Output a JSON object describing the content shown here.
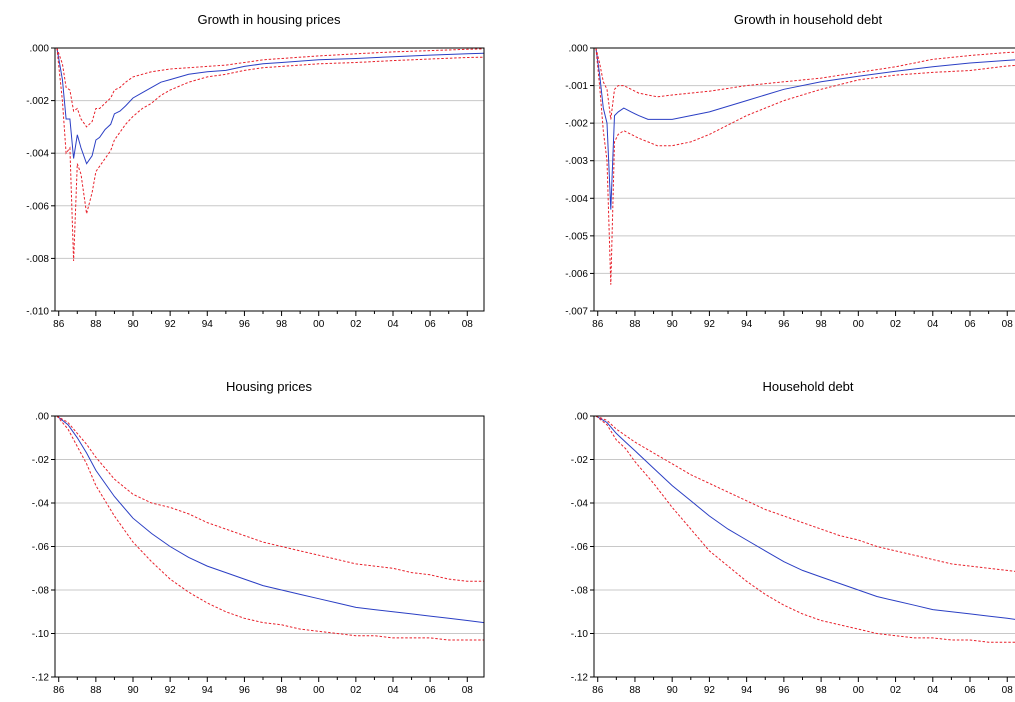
{
  "chart_data": [
    {
      "type": "line",
      "title": "Growth in housing prices",
      "xlabel": "",
      "ylabel": "",
      "x_tick_labels": [
        "86",
        "88",
        "90",
        "92",
        "94",
        "96",
        "98",
        "00",
        "02",
        "04",
        "06",
        "08"
      ],
      "y_tick_labels": [
        ".000",
        "-.002",
        "-.004",
        "-.006",
        "-.008",
        "-.010"
      ],
      "ylim": [
        -0.01,
        0.0
      ],
      "xlim": [
        1985.8,
        2008.9
      ],
      "grid": true,
      "colors": {
        "central": "#2b3fc4",
        "band": "#e8212b"
      },
      "series": [
        {
          "style": "solid",
          "x": [
            1985.9,
            1986.2,
            1986.4,
            1986.6,
            1986.8,
            1987.0,
            1987.2,
            1987.5,
            1987.8,
            1988.0,
            1988.2,
            1988.5,
            1988.8,
            1989.0,
            1989.3,
            1989.6,
            1990.0,
            1990.5,
            1991.0,
            1991.5,
            1992.0,
            1993.0,
            1994.0,
            1995.0,
            1996.0,
            1997.0,
            1998.0,
            2000.0,
            2002.0,
            2004.0,
            2006.0,
            2008.0,
            2008.9
          ],
          "y": [
            0,
            -0.0012,
            -0.0027,
            -0.0027,
            -0.0042,
            -0.0033,
            -0.0038,
            -0.0044,
            -0.0041,
            -0.0035,
            -0.0034,
            -0.0031,
            -0.0029,
            -0.0025,
            -0.0024,
            -0.0022,
            -0.0019,
            -0.0017,
            -0.0015,
            -0.0013,
            -0.0012,
            -0.001,
            -0.0009,
            -0.00085,
            -0.0007,
            -0.0006,
            -0.00055,
            -0.00045,
            -0.0004,
            -0.00033,
            -0.00027,
            -0.00022,
            -0.0002
          ]
        },
        {
          "style": "dashed",
          "x": [
            1985.9,
            1986.2,
            1986.4,
            1986.6,
            1986.8,
            1987.0,
            1987.2,
            1987.5,
            1987.8,
            1988.0,
            1988.2,
            1988.5,
            1988.8,
            1989.0,
            1989.3,
            1989.6,
            1990.0,
            1990.5,
            1991.0,
            1991.5,
            1992.0,
            1993.0,
            1994.0,
            1995.0,
            1996.0,
            1997.0,
            1998.0,
            2000.0,
            2002.0,
            2004.0,
            2006.0,
            2008.0,
            2008.9
          ],
          "y": [
            0,
            -0.0006,
            -0.0015,
            -0.0016,
            -0.0024,
            -0.0023,
            -0.0027,
            -0.003,
            -0.0028,
            -0.0023,
            -0.0023,
            -0.0021,
            -0.0019,
            -0.0016,
            -0.0015,
            -0.0013,
            -0.0011,
            -0.001,
            -0.0009,
            -0.00085,
            -0.0008,
            -0.00075,
            -0.0007,
            -0.00065,
            -0.00055,
            -0.00045,
            -0.0004,
            -0.0003,
            -0.00022,
            -0.00015,
            -0.0001,
            -5e-05,
            -3e-05
          ]
        },
        {
          "style": "dashed",
          "x": [
            1985.9,
            1986.2,
            1986.4,
            1986.6,
            1986.8,
            1987.0,
            1987.2,
            1987.5,
            1987.8,
            1988.0,
            1988.2,
            1988.5,
            1988.8,
            1989.0,
            1989.3,
            1989.6,
            1990.0,
            1990.5,
            1991.0,
            1991.5,
            1992.0,
            1993.0,
            1994.0,
            1995.0,
            1996.0,
            1997.0,
            1998.0,
            2000.0,
            2002.0,
            2004.0,
            2006.0,
            2008.0,
            2008.9
          ],
          "y": [
            0,
            -0.002,
            -0.004,
            -0.0038,
            -0.0081,
            -0.0044,
            -0.0048,
            -0.0063,
            -0.0055,
            -0.0047,
            -0.0045,
            -0.0042,
            -0.0039,
            -0.0035,
            -0.0032,
            -0.0029,
            -0.0026,
            -0.0023,
            -0.0021,
            -0.0018,
            -0.0016,
            -0.0013,
            -0.0011,
            -0.001,
            -0.00085,
            -0.00075,
            -0.0007,
            -0.0006,
            -0.00055,
            -0.00048,
            -0.00042,
            -0.00036,
            -0.00035
          ]
        }
      ]
    },
    {
      "type": "line",
      "title": "Growth in household debt",
      "xlabel": "",
      "ylabel": "",
      "x_tick_labels": [
        "86",
        "88",
        "90",
        "92",
        "94",
        "96",
        "98",
        "00",
        "02",
        "04",
        "06",
        "08"
      ],
      "y_tick_labels": [
        ".000",
        "-.001",
        "-.002",
        "-.003",
        "-.004",
        "-.005",
        "-.006",
        "-.007"
      ],
      "ylim": [
        -0.007,
        0.0
      ],
      "xlim": [
        1985.8,
        2008.9
      ],
      "grid": true,
      "colors": {
        "central": "#2b3fc4",
        "band": "#e8212b"
      },
      "series": [
        {
          "style": "solid",
          "x": [
            1985.9,
            1986.1,
            1986.3,
            1986.5,
            1986.7,
            1986.9,
            1987.1,
            1987.4,
            1987.8,
            1988.2,
            1988.7,
            1989.2,
            1990.0,
            1991.0,
            1992.0,
            1994.0,
            1996.0,
            1998.0,
            2000.0,
            2002.0,
            2004.0,
            2006.0,
            2008.0,
            2008.9
          ],
          "y": [
            0,
            -0.0007,
            -0.0016,
            -0.002,
            -0.0043,
            -0.0018,
            -0.0017,
            -0.0016,
            -0.0017,
            -0.0018,
            -0.0019,
            -0.0019,
            -0.0019,
            -0.0018,
            -0.0017,
            -0.0014,
            -0.0011,
            -0.0009,
            -0.00075,
            -0.00062,
            -0.0005,
            -0.0004,
            -0.00033,
            -0.0003
          ]
        },
        {
          "style": "dashed",
          "x": [
            1985.9,
            1986.1,
            1986.3,
            1986.5,
            1986.7,
            1986.9,
            1987.1,
            1987.4,
            1987.8,
            1988.2,
            1988.7,
            1989.2,
            1990.0,
            1991.0,
            1992.0,
            1994.0,
            1996.0,
            1998.0,
            2000.0,
            2002.0,
            2004.0,
            2006.0,
            2008.0,
            2008.9
          ],
          "y": [
            0,
            -0.0004,
            -0.0009,
            -0.0011,
            -0.0019,
            -0.0011,
            -0.001,
            -0.001,
            -0.0011,
            -0.0012,
            -0.00125,
            -0.0013,
            -0.00125,
            -0.0012,
            -0.00115,
            -0.001,
            -0.0009,
            -0.0008,
            -0.00065,
            -0.0005,
            -0.0003,
            -0.0002,
            -0.00012,
            -0.0001
          ]
        },
        {
          "style": "dashed",
          "x": [
            1985.9,
            1986.1,
            1986.3,
            1986.5,
            1986.7,
            1986.9,
            1987.1,
            1987.4,
            1987.8,
            1988.2,
            1988.7,
            1989.2,
            1990.0,
            1991.0,
            1992.0,
            1994.0,
            1996.0,
            1998.0,
            2000.0,
            2002.0,
            2004.0,
            2006.0,
            2008.0,
            2008.9
          ],
          "y": [
            0,
            -0.001,
            -0.0022,
            -0.003,
            -0.0063,
            -0.0025,
            -0.0023,
            -0.0022,
            -0.0023,
            -0.0024,
            -0.0025,
            -0.0026,
            -0.0026,
            -0.0025,
            -0.0023,
            -0.0018,
            -0.0014,
            -0.0011,
            -0.00085,
            -0.00072,
            -0.00065,
            -0.0006,
            -0.00048,
            -0.00045
          ]
        }
      ]
    },
    {
      "type": "line",
      "title": "Housing prices",
      "xlabel": "",
      "ylabel": "",
      "x_tick_labels": [
        "86",
        "88",
        "90",
        "92",
        "94",
        "96",
        "98",
        "00",
        "02",
        "04",
        "06",
        "08"
      ],
      "y_tick_labels": [
        ".00",
        "-.02",
        "-.04",
        "-.06",
        "-.08",
        "-.10",
        "-.12"
      ],
      "ylim": [
        -0.12,
        0.0
      ],
      "xlim": [
        1985.8,
        2008.9
      ],
      "grid": true,
      "colors": {
        "central": "#2b3fc4",
        "band": "#e8212b"
      },
      "series": [
        {
          "style": "solid",
          "x": [
            1985.9,
            1986.5,
            1987.0,
            1987.5,
            1988.0,
            1989.0,
            1990.0,
            1991.0,
            1992.0,
            1993.0,
            1994.0,
            1995.0,
            1996.0,
            1997.0,
            1998.0,
            1999.0,
            2000.0,
            2001.0,
            2002.0,
            2003.0,
            2004.0,
            2005.0,
            2006.0,
            2007.0,
            2008.0,
            2008.9
          ],
          "y": [
            0,
            -0.004,
            -0.01,
            -0.017,
            -0.025,
            -0.037,
            -0.047,
            -0.054,
            -0.06,
            -0.065,
            -0.069,
            -0.072,
            -0.075,
            -0.078,
            -0.08,
            -0.082,
            -0.084,
            -0.086,
            -0.088,
            -0.089,
            -0.09,
            -0.091,
            -0.092,
            -0.093,
            -0.094,
            -0.095
          ]
        },
        {
          "style": "dashed",
          "x": [
            1985.9,
            1986.5,
            1987.0,
            1987.5,
            1988.0,
            1989.0,
            1990.0,
            1991.0,
            1992.0,
            1993.0,
            1994.0,
            1995.0,
            1996.0,
            1997.0,
            1998.0,
            1999.0,
            2000.0,
            2001.0,
            2002.0,
            2003.0,
            2004.0,
            2005.0,
            2006.0,
            2007.0,
            2008.0,
            2008.9
          ],
          "y": [
            0,
            -0.003,
            -0.008,
            -0.013,
            -0.019,
            -0.029,
            -0.036,
            -0.04,
            -0.042,
            -0.045,
            -0.049,
            -0.052,
            -0.055,
            -0.058,
            -0.06,
            -0.062,
            -0.064,
            -0.066,
            -0.068,
            -0.069,
            -0.07,
            -0.072,
            -0.073,
            -0.075,
            -0.076,
            -0.076
          ]
        },
        {
          "style": "dashed",
          "x": [
            1985.9,
            1986.5,
            1987.0,
            1987.5,
            1988.0,
            1989.0,
            1990.0,
            1991.0,
            1992.0,
            1993.0,
            1994.0,
            1995.0,
            1996.0,
            1997.0,
            1998.0,
            1999.0,
            2000.0,
            2001.0,
            2002.0,
            2003.0,
            2004.0,
            2005.0,
            2006.0,
            2007.0,
            2008.0,
            2008.9
          ],
          "y": [
            0,
            -0.006,
            -0.014,
            -0.022,
            -0.032,
            -0.046,
            -0.058,
            -0.067,
            -0.075,
            -0.081,
            -0.086,
            -0.09,
            -0.093,
            -0.095,
            -0.096,
            -0.098,
            -0.099,
            -0.1,
            -0.101,
            -0.101,
            -0.102,
            -0.102,
            -0.102,
            -0.103,
            -0.103,
            -0.103
          ]
        }
      ]
    },
    {
      "type": "line",
      "title": "Household debt",
      "xlabel": "",
      "ylabel": "",
      "x_tick_labels": [
        "86",
        "88",
        "90",
        "92",
        "94",
        "96",
        "98",
        "00",
        "02",
        "04",
        "06",
        "08"
      ],
      "y_tick_labels": [
        ".00",
        "-.02",
        "-.04",
        "-.06",
        "-.08",
        "-.10",
        "-.12"
      ],
      "ylim": [
        -0.12,
        0.0
      ],
      "xlim": [
        1985.8,
        2008.9
      ],
      "grid": true,
      "colors": {
        "central": "#2b3fc4",
        "band": "#e8212b"
      },
      "series": [
        {
          "style": "solid",
          "x": [
            1985.9,
            1986.5,
            1987.0,
            1987.5,
            1988.0,
            1989.0,
            1990.0,
            1991.0,
            1992.0,
            1993.0,
            1994.0,
            1995.0,
            1996.0,
            1997.0,
            1998.0,
            1999.0,
            2000.0,
            2001.0,
            2002.0,
            2003.0,
            2004.0,
            2005.0,
            2006.0,
            2007.0,
            2008.0,
            2008.9
          ],
          "y": [
            0,
            -0.003,
            -0.008,
            -0.012,
            -0.016,
            -0.024,
            -0.032,
            -0.039,
            -0.046,
            -0.052,
            -0.057,
            -0.062,
            -0.067,
            -0.071,
            -0.074,
            -0.077,
            -0.08,
            -0.083,
            -0.085,
            -0.087,
            -0.089,
            -0.09,
            -0.091,
            -0.092,
            -0.093,
            -0.094
          ]
        },
        {
          "style": "dashed",
          "x": [
            1985.9,
            1986.5,
            1987.0,
            1987.5,
            1988.0,
            1989.0,
            1990.0,
            1991.0,
            1992.0,
            1993.0,
            1994.0,
            1995.0,
            1996.0,
            1997.0,
            1998.0,
            1999.0,
            2000.0,
            2001.0,
            2002.0,
            2003.0,
            2004.0,
            2005.0,
            2006.0,
            2007.0,
            2008.0,
            2008.9
          ],
          "y": [
            0,
            -0.002,
            -0.006,
            -0.009,
            -0.012,
            -0.017,
            -0.022,
            -0.027,
            -0.031,
            -0.035,
            -0.039,
            -0.043,
            -0.046,
            -0.049,
            -0.052,
            -0.055,
            -0.057,
            -0.06,
            -0.062,
            -0.064,
            -0.066,
            -0.068,
            -0.069,
            -0.07,
            -0.071,
            -0.072
          ]
        },
        {
          "style": "dashed",
          "x": [
            1985.9,
            1986.5,
            1987.0,
            1987.5,
            1988.0,
            1989.0,
            1990.0,
            1991.0,
            1992.0,
            1993.0,
            1994.0,
            1995.0,
            1996.0,
            1997.0,
            1998.0,
            1999.0,
            2000.0,
            2001.0,
            2002.0,
            2003.0,
            2004.0,
            2005.0,
            2006.0,
            2007.0,
            2008.0,
            2008.9
          ],
          "y": [
            0,
            -0.004,
            -0.011,
            -0.015,
            -0.021,
            -0.031,
            -0.042,
            -0.052,
            -0.062,
            -0.069,
            -0.076,
            -0.082,
            -0.087,
            -0.091,
            -0.094,
            -0.096,
            -0.098,
            -0.1,
            -0.101,
            -0.102,
            -0.102,
            -0.103,
            -0.103,
            -0.104,
            -0.104,
            -0.104
          ]
        }
      ]
    }
  ]
}
